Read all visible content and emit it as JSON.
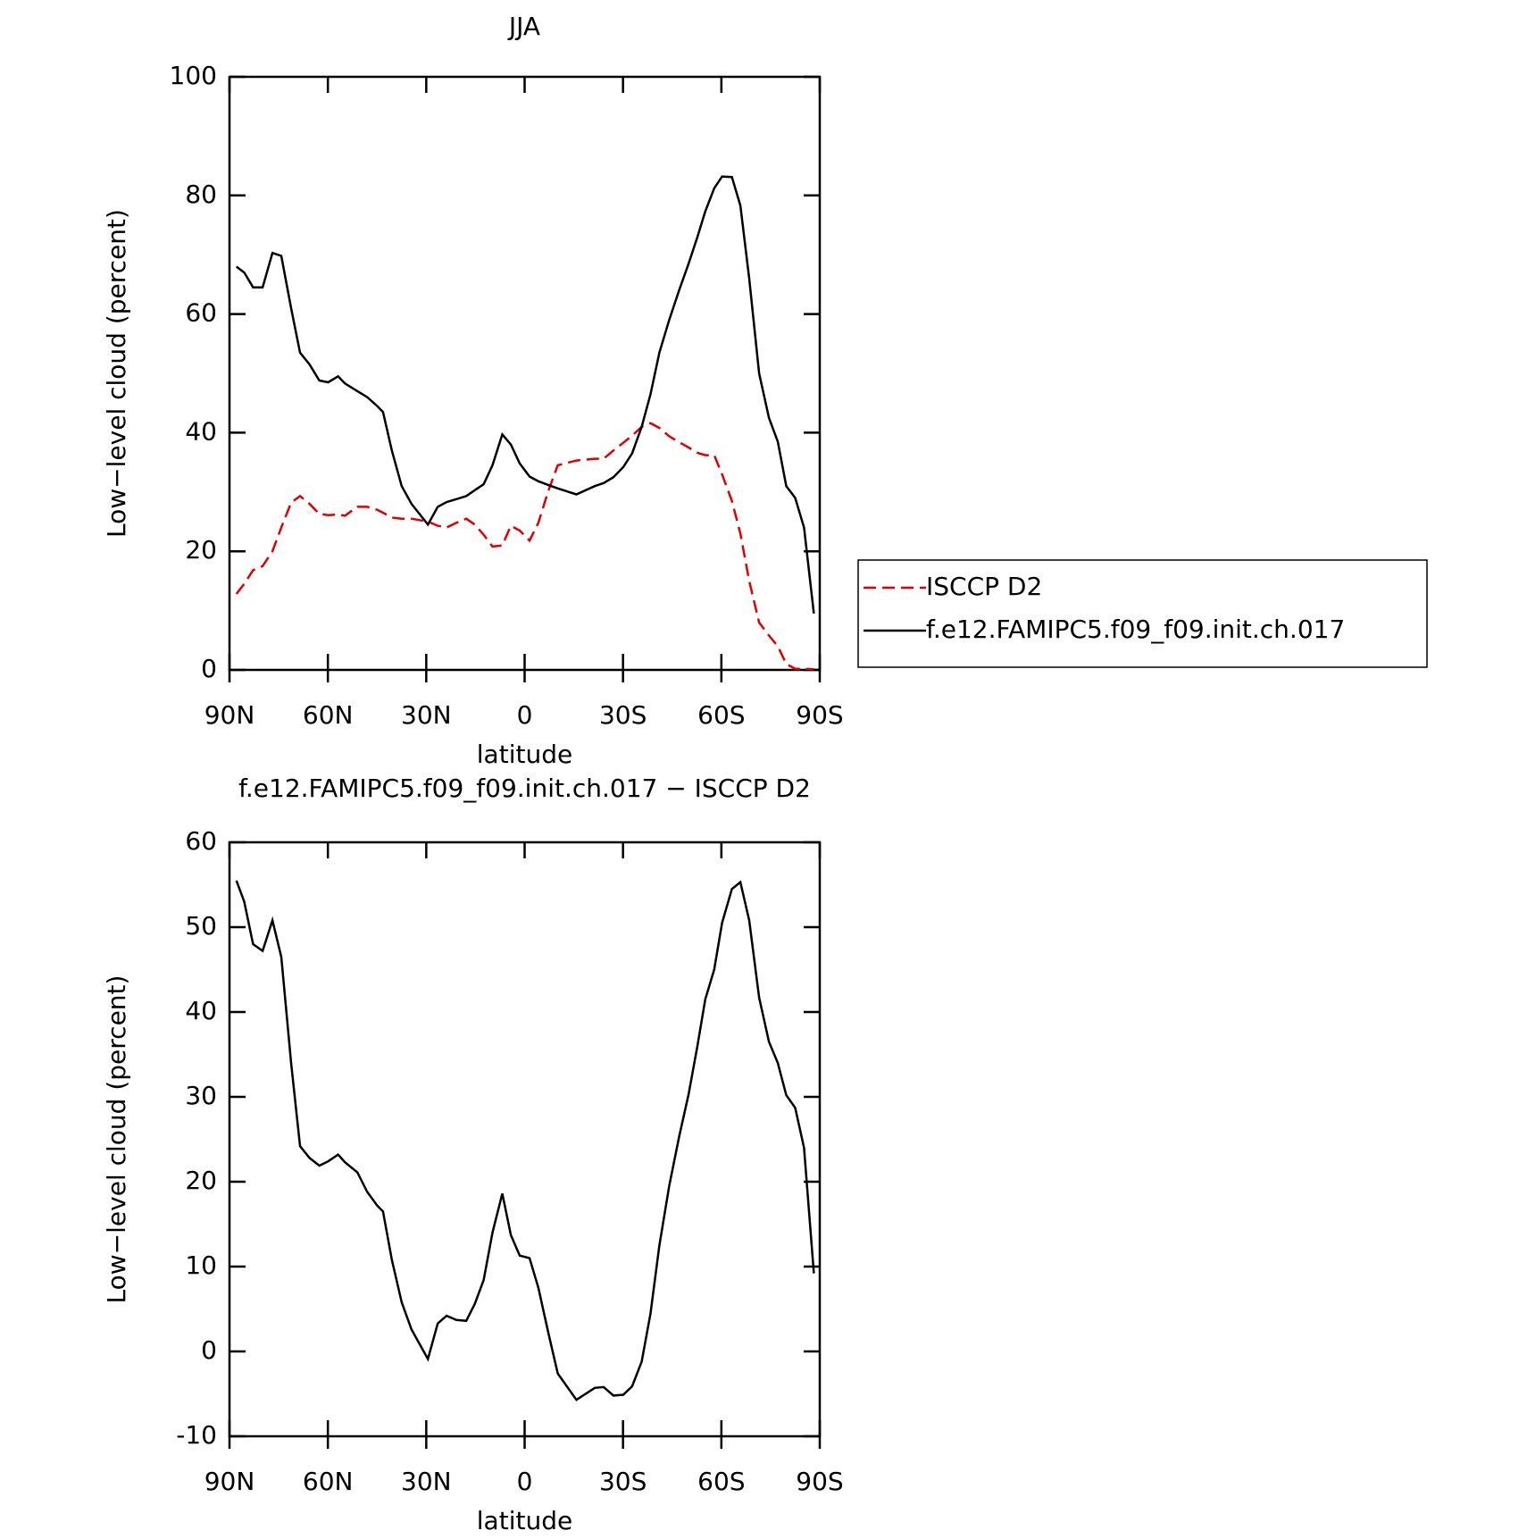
{
  "chart_data": [
    {
      "type": "line",
      "title": "JJA",
      "xlabel": "latitude",
      "ylabel": "Low−level cloud (percent)",
      "x": [
        87.9,
        85.5,
        82.8,
        79.9,
        76.9,
        74.2,
        71.2,
        68.5,
        65.6,
        62.6,
        59.9,
        56.9,
        54.8,
        51.0,
        48.0,
        45.0,
        43.2,
        40.5,
        37.5,
        34.5,
        29.5,
        26.5,
        23.8,
        20.8,
        17.8,
        15.2,
        12.5,
        9.8,
        6.8,
        4.2,
        1.5,
        -1.5,
        -4.2,
        -7.1,
        -10.1,
        -15.8,
        -21.4,
        -24.1,
        -27.1,
        -30.1,
        -32.8,
        -35.7,
        -38.4,
        -41.1,
        -44.1,
        -47.1,
        -50.0,
        -52.7,
        -55.1,
        -57.8,
        -60.2,
        -63.2,
        -65.8,
        -68.5,
        -71.5,
        -74.5,
        -77.2,
        -79.8,
        -82.5,
        -85.2,
        -88.2
      ],
      "series": [
        {
          "name": "ISCCP D2",
          "color": "#e00000",
          "linestyle": "dashed",
          "values": [
            12.8,
            14.5,
            16.8,
            17.5,
            20,
            24,
            28.2,
            29.3,
            28,
            26.3,
            26.1,
            26.2,
            26,
            27.5,
            27.5,
            27,
            26.5,
            25.7,
            25.5,
            25.5,
            25,
            24.3,
            24,
            24.8,
            25.5,
            24.5,
            22.8,
            20.8,
            21,
            24.3,
            23.5,
            21.8,
            24.8,
            30,
            34.5,
            35.3,
            35.6,
            35.6,
            37,
            38.3,
            39.5,
            41,
            41.6,
            40.8,
            39.4,
            38.4,
            37.5,
            36.6,
            36.2,
            36.2,
            33,
            28.5,
            23,
            15,
            8,
            5.8,
            4,
            1,
            0.2,
            0.2,
            0.1
          ]
        },
        {
          "name": "f.e12.FAMIPC5.f09_f09.init.ch.017",
          "color": "#000000",
          "linestyle": "solid",
          "values": [
            68,
            67,
            64.5,
            64.5,
            70.3,
            69.8,
            61,
            53.5,
            51.5,
            48.8,
            48.5,
            49.5,
            48.3,
            47,
            46,
            44.5,
            43.5,
            37,
            31,
            28,
            24.5,
            27.5,
            28.3,
            28.8,
            29.3,
            30.3,
            31.3,
            34.5,
            39.7,
            38,
            34.8,
            32.6,
            31.8,
            31.2,
            30.6,
            29.6,
            31,
            31.5,
            32.5,
            34.2,
            36.5,
            41,
            46.5,
            53.5,
            59,
            64,
            68.5,
            73,
            77.3,
            81.2,
            83.2,
            83.1,
            78.3,
            66,
            50,
            42.5,
            38.5,
            31,
            29,
            24,
            9.5
          ]
        }
      ],
      "xlim": [
        90,
        -90
      ],
      "xticks": [
        {
          "value": 90,
          "label": "90N"
        },
        {
          "value": 60,
          "label": "60N"
        },
        {
          "value": 30,
          "label": "30N"
        },
        0,
        {
          "value": -30,
          "label": "30S"
        },
        {
          "value": -60,
          "label": "60S"
        },
        {
          "value": -90,
          "label": "90S"
        }
      ],
      "ylim": [
        0,
        100
      ],
      "yticks": [
        0,
        20,
        40,
        60,
        80,
        100
      ],
      "legend": "right"
    },
    {
      "type": "line",
      "title": "f.e12.FAMIPC5.f09_f09.init.ch.017 − ISCCP D2",
      "xlabel": "latitude",
      "ylabel": "Low−level cloud (percent)",
      "x": [
        87.9,
        85.5,
        82.8,
        79.9,
        76.9,
        74.2,
        71.2,
        68.5,
        65.6,
        62.6,
        59.9,
        56.9,
        54.8,
        51.0,
        48.0,
        45.0,
        43.2,
        40.5,
        37.5,
        34.5,
        29.5,
        26.5,
        23.8,
        20.8,
        17.8,
        15.2,
        12.5,
        9.8,
        6.8,
        4.2,
        1.5,
        -1.5,
        -4.2,
        -7.1,
        -10.1,
        -15.8,
        -21.4,
        -24.1,
        -27.1,
        -30.1,
        -32.8,
        -35.7,
        -38.4,
        -41.1,
        -44.1,
        -47.1,
        -50.0,
        -52.7,
        -55.1,
        -57.8,
        -60.2,
        -63.2,
        -65.8,
        -68.5,
        -71.5,
        -74.5,
        -77.2,
        -79.8,
        -82.5,
        -85.2,
        -88.2
      ],
      "series": [
        {
          "color": "#000000",
          "linestyle": "solid",
          "values": [
            55.5,
            53,
            48,
            47.2,
            50.8,
            46.5,
            34,
            24.2,
            22.8,
            21.9,
            22.4,
            23.2,
            22.3,
            21.1,
            18.8,
            17.2,
            16.5,
            10.8,
            5.8,
            2.6,
            -0.9,
            3.3,
            4.2,
            3.7,
            3.6,
            5.6,
            8.4,
            14,
            18.6,
            13.7,
            11.3,
            11,
            7.5,
            2.4,
            -2.6,
            -5.7,
            -4.3,
            -4.2,
            -5.2,
            -5.1,
            -4.1,
            -1.2,
            4.5,
            12.5,
            19.5,
            25.3,
            30.3,
            36,
            41.5,
            45,
            50.5,
            54.5,
            55.3,
            50.8,
            41.7,
            36.5,
            34,
            30.2,
            28.7,
            24,
            9.2
          ]
        }
      ],
      "xlim": [
        90,
        -90
      ],
      "xticks": [
        {
          "value": 90,
          "label": "90N"
        },
        {
          "value": 60,
          "label": "60N"
        },
        {
          "value": 30,
          "label": "30N"
        },
        0,
        {
          "value": -30,
          "label": "30S"
        },
        {
          "value": -60,
          "label": "60S"
        },
        {
          "value": -90,
          "label": "90S"
        }
      ],
      "ylim": [
        -10,
        60
      ],
      "yticks": [
        -10,
        0,
        10,
        20,
        30,
        40,
        50,
        60
      ]
    }
  ]
}
